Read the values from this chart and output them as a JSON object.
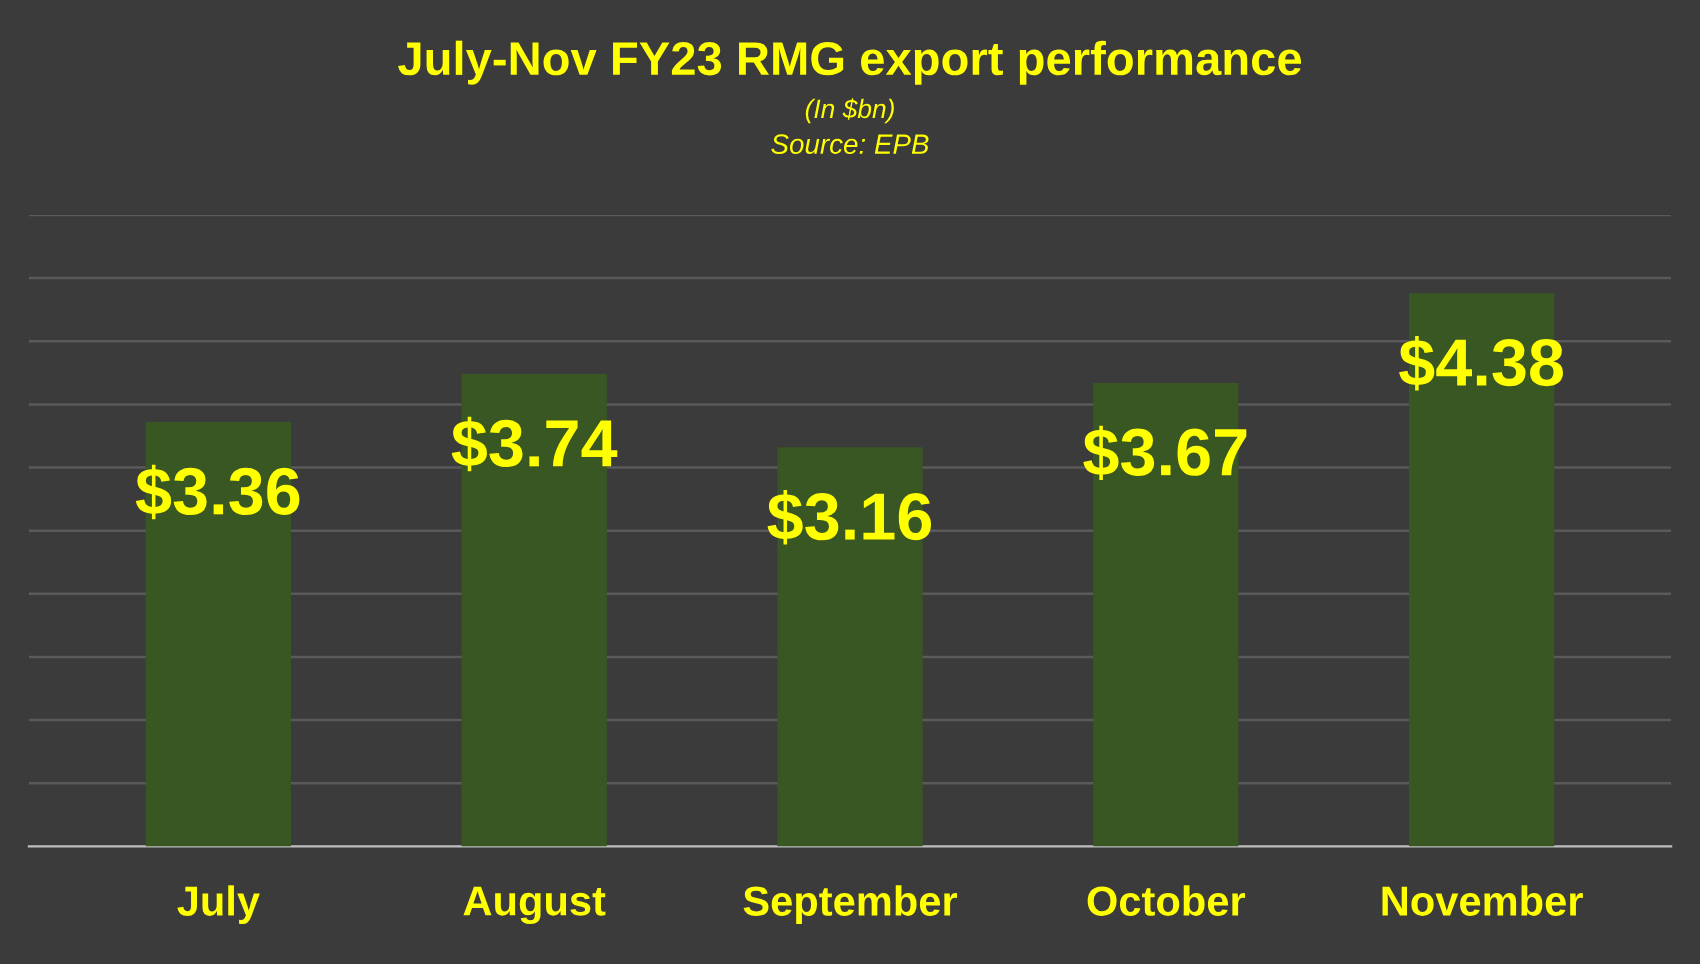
{
  "chart_data": {
    "type": "bar",
    "title": "July-Nov FY23 RMG export performance",
    "subtitle": "(In $bn)",
    "annotations": [
      "Source: EPB"
    ],
    "categories": [
      "July",
      "August",
      "September",
      "October",
      "November"
    ],
    "values": [
      3.36,
      3.74,
      3.16,
      3.67,
      4.38
    ],
    "value_labels": [
      "$3.36",
      "$3.74",
      "$3.16",
      "$3.67",
      "$4.38"
    ],
    "color": "#385723",
    "ylim": [
      0,
      5
    ],
    "yticks": [
      {
        "value": 0.5,
        "label": null
      },
      {
        "value": 1,
        "label": null
      },
      {
        "value": 1.5,
        "label": null
      },
      {
        "value": 2,
        "label": null
      },
      {
        "value": 2.5,
        "label": null
      },
      {
        "value": 3,
        "label": null
      },
      {
        "value": 3.5,
        "label": null
      },
      {
        "value": 4,
        "label": null
      },
      {
        "value": 4.5,
        "label": null
      },
      {
        "value": 5,
        "label": null
      }
    ],
    "tick_labels": "x",
    "grid": "y",
    "legend": false
  }
}
